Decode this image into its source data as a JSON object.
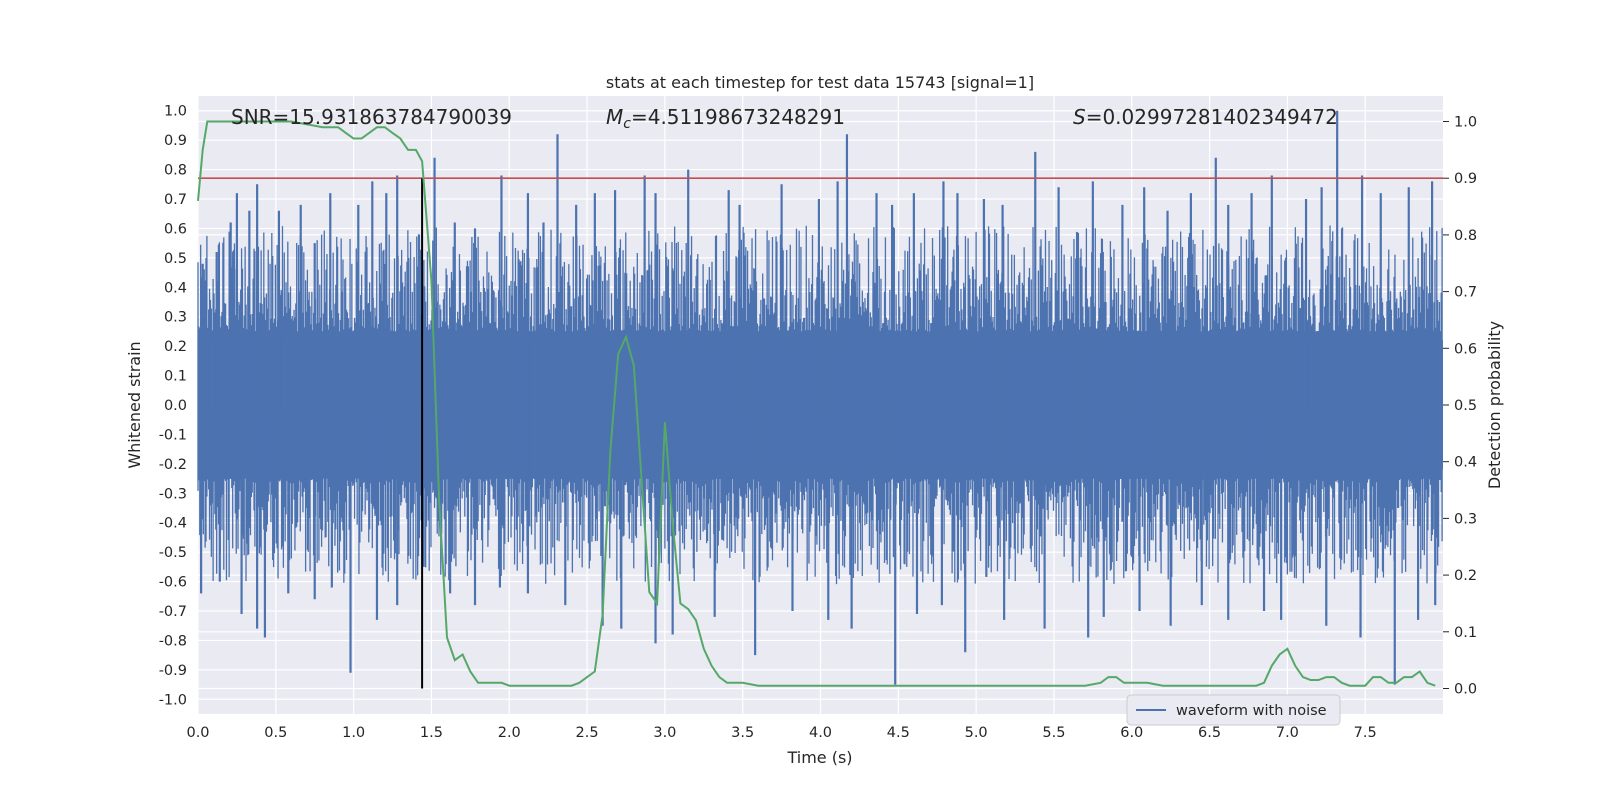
{
  "chart_data": {
    "type": "line",
    "title": "stats at each timestep for test data 15743 [signal=1]",
    "xlabel": "Time (s)",
    "ylabel_left": "Whitened strain",
    "ylabel_right": "Detection probability",
    "xlim": [
      0,
      8
    ],
    "ylim_left": [
      -1.05,
      1.05
    ],
    "ylim_right": [
      -0.045,
      1.045
    ],
    "x_ticks": [
      "0.0",
      "0.5",
      "1.0",
      "1.5",
      "2.0",
      "2.5",
      "3.0",
      "3.5",
      "4.0",
      "4.5",
      "5.0",
      "5.5",
      "6.0",
      "6.5",
      "7.0",
      "7.5"
    ],
    "y_ticks_left": [
      "1.0",
      "0.9",
      "0.8",
      "0.7",
      "0.6",
      "0.5",
      "0.4",
      "0.3",
      "0.2",
      "0.1",
      "0.0",
      "-0.1",
      "-0.2",
      "-0.3",
      "-0.4",
      "-0.5",
      "-0.6",
      "-0.7",
      "-0.8",
      "-0.9",
      "-1.0"
    ],
    "y_ticks_right": [
      "1.0",
      "0.9",
      "0.8",
      "0.7",
      "0.6",
      "0.5",
      "0.4",
      "0.3",
      "0.2",
      "0.1",
      "0.0"
    ],
    "grid": true,
    "legend_placement": "lower-right",
    "annotations": {
      "snr": "SNR=15.931863784790039",
      "mc_symbol": "M",
      "mc_subscript": "c",
      "mc_value": "=4.51198673248291",
      "s_symbol": "S",
      "s_value": "=0.02997281402349472"
    },
    "threshold": {
      "probability": 0.9,
      "color": "#c44e52"
    },
    "marker_line": {
      "x": 1.44,
      "ymin": 0.0,
      "ymax": 0.9,
      "color": "#000000"
    },
    "waveform_envelope": {
      "name": "waveform with noise",
      "color": "#4c72b0",
      "x_range": [
        0,
        8
      ],
      "dense_band": [
        -0.22,
        0.22
      ],
      "peaks_positive": [
        [
          0.03,
          0.48
        ],
        [
          0.12,
          0.52
        ],
        [
          0.21,
          0.62
        ],
        [
          0.25,
          0.72
        ],
        [
          0.33,
          0.66
        ],
        [
          0.38,
          0.75
        ],
        [
          0.52,
          0.66
        ],
        [
          0.66,
          0.68
        ],
        [
          0.75,
          0.55
        ],
        [
          0.85,
          0.72
        ],
        [
          1.03,
          0.68
        ],
        [
          1.12,
          0.76
        ],
        [
          1.21,
          0.72
        ],
        [
          1.28,
          0.78
        ],
        [
          1.42,
          0.58
        ],
        [
          1.52,
          0.84
        ],
        [
          1.65,
          0.62
        ],
        [
          1.78,
          0.6
        ],
        [
          1.95,
          0.78
        ],
        [
          2.12,
          0.72
        ],
        [
          2.22,
          0.62
        ],
        [
          2.31,
          0.92
        ],
        [
          2.43,
          0.68
        ],
        [
          2.55,
          0.72
        ],
        [
          2.68,
          0.73
        ],
        [
          2.87,
          0.78
        ],
        [
          2.94,
          0.72
        ],
        [
          3.15,
          0.8
        ],
        [
          3.41,
          0.73
        ],
        [
          3.48,
          0.68
        ],
        [
          3.75,
          0.75
        ],
        [
          3.99,
          0.7
        ],
        [
          4.11,
          0.76
        ],
        [
          4.17,
          0.92
        ],
        [
          4.36,
          0.72
        ],
        [
          4.46,
          0.68
        ],
        [
          4.6,
          0.72
        ],
        [
          4.79,
          0.76
        ],
        [
          4.88,
          0.72
        ],
        [
          5.05,
          0.7
        ],
        [
          5.17,
          0.68
        ],
        [
          5.38,
          0.86
        ],
        [
          5.53,
          0.74
        ],
        [
          5.75,
          0.76
        ],
        [
          5.94,
          0.68
        ],
        [
          6.08,
          0.74
        ],
        [
          6.23,
          0.66
        ],
        [
          6.38,
          0.72
        ],
        [
          6.54,
          0.84
        ],
        [
          6.62,
          0.68
        ],
        [
          6.77,
          0.72
        ],
        [
          6.9,
          0.78
        ],
        [
          7.12,
          0.7
        ],
        [
          7.22,
          0.74
        ],
        [
          7.32,
          1.0
        ],
        [
          7.48,
          0.78
        ],
        [
          7.6,
          0.72
        ],
        [
          7.78,
          0.74
        ],
        [
          7.93,
          0.76
        ]
      ],
      "peaks_negative": [
        [
          0.02,
          -0.64
        ],
        [
          0.14,
          -0.6
        ],
        [
          0.28,
          -0.71
        ],
        [
          0.38,
          -0.76
        ],
        [
          0.43,
          -0.79
        ],
        [
          0.58,
          -0.64
        ],
        [
          0.75,
          -0.66
        ],
        [
          0.86,
          -0.62
        ],
        [
          0.98,
          -0.91
        ],
        [
          1.15,
          -0.73
        ],
        [
          1.28,
          -0.68
        ],
        [
          1.45,
          -0.55
        ],
        [
          1.62,
          -0.64
        ],
        [
          1.78,
          -0.68
        ],
        [
          1.94,
          -0.62
        ],
        [
          2.12,
          -0.64
        ],
        [
          2.36,
          -0.68
        ],
        [
          2.6,
          -0.75
        ],
        [
          2.72,
          -0.76
        ],
        [
          2.94,
          -0.81
        ],
        [
          3.05,
          -0.78
        ],
        [
          3.32,
          -0.72
        ],
        [
          3.58,
          -0.85
        ],
        [
          3.82,
          -0.7
        ],
        [
          4.05,
          -0.73
        ],
        [
          4.2,
          -0.76
        ],
        [
          4.48,
          -0.95
        ],
        [
          4.62,
          -0.71
        ],
        [
          4.78,
          -0.68
        ],
        [
          4.93,
          -0.84
        ],
        [
          5.18,
          -0.73
        ],
        [
          5.44,
          -0.76
        ],
        [
          5.72,
          -0.79
        ],
        [
          5.82,
          -0.72
        ],
        [
          6.05,
          -0.7
        ],
        [
          6.25,
          -0.75
        ],
        [
          6.45,
          -0.68
        ],
        [
          6.62,
          -0.73
        ],
        [
          6.85,
          -0.7
        ],
        [
          6.96,
          -0.73
        ],
        [
          7.25,
          -0.75
        ],
        [
          7.47,
          -0.79
        ],
        [
          7.69,
          -0.95
        ],
        [
          7.84,
          -0.73
        ],
        [
          7.95,
          -0.68
        ]
      ]
    },
    "series": [
      {
        "name": "detection probability",
        "color": "#55a868",
        "x": [
          0.0,
          0.03,
          0.06,
          0.1,
          0.2,
          0.4,
          0.6,
          0.8,
          0.9,
          0.95,
          1.0,
          1.05,
          1.1,
          1.15,
          1.2,
          1.25,
          1.3,
          1.35,
          1.4,
          1.44,
          1.5,
          1.55,
          1.6,
          1.65,
          1.7,
          1.75,
          1.8,
          1.85,
          1.9,
          1.95,
          2.0,
          2.1,
          2.2,
          2.3,
          2.4,
          2.45,
          2.5,
          2.55,
          2.6,
          2.65,
          2.7,
          2.75,
          2.8,
          2.85,
          2.9,
          2.95,
          3.0,
          3.05,
          3.1,
          3.15,
          3.2,
          3.25,
          3.3,
          3.35,
          3.4,
          3.45,
          3.5,
          3.6,
          3.7,
          3.8,
          4.0,
          4.2,
          4.4,
          4.5,
          4.6,
          4.8,
          5.0,
          5.2,
          5.4,
          5.5,
          5.6,
          5.7,
          5.8,
          5.85,
          5.9,
          5.95,
          6.0,
          6.1,
          6.2,
          6.3,
          6.4,
          6.5,
          6.6,
          6.7,
          6.8,
          6.85,
          6.9,
          6.95,
          7.0,
          7.05,
          7.1,
          7.15,
          7.2,
          7.25,
          7.3,
          7.35,
          7.4,
          7.45,
          7.5,
          7.55,
          7.6,
          7.65,
          7.7,
          7.75,
          7.8,
          7.85,
          7.9,
          7.95
        ],
        "y": [
          0.86,
          0.95,
          1.0,
          1.0,
          1.0,
          1.0,
          1.0,
          0.99,
          0.99,
          0.98,
          0.97,
          0.97,
          0.98,
          0.99,
          0.99,
          0.98,
          0.97,
          0.95,
          0.95,
          0.93,
          0.72,
          0.33,
          0.09,
          0.05,
          0.06,
          0.03,
          0.01,
          0.01,
          0.01,
          0.01,
          0.005,
          0.005,
          0.005,
          0.005,
          0.005,
          0.01,
          0.02,
          0.03,
          0.13,
          0.42,
          0.59,
          0.62,
          0.57,
          0.37,
          0.17,
          0.15,
          0.47,
          0.29,
          0.15,
          0.14,
          0.12,
          0.07,
          0.04,
          0.02,
          0.01,
          0.01,
          0.01,
          0.005,
          0.005,
          0.005,
          0.005,
          0.005,
          0.005,
          0.005,
          0.005,
          0.005,
          0.005,
          0.005,
          0.005,
          0.005,
          0.005,
          0.005,
          0.01,
          0.02,
          0.02,
          0.01,
          0.01,
          0.01,
          0.005,
          0.005,
          0.005,
          0.005,
          0.005,
          0.005,
          0.005,
          0.01,
          0.04,
          0.06,
          0.07,
          0.04,
          0.02,
          0.015,
          0.015,
          0.02,
          0.02,
          0.01,
          0.005,
          0.005,
          0.005,
          0.02,
          0.02,
          0.01,
          0.01,
          0.02,
          0.02,
          0.03,
          0.01,
          0.005
        ]
      }
    ]
  }
}
